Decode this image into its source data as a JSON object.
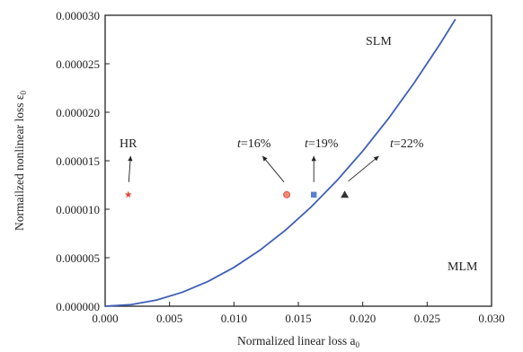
{
  "chart_data": {
    "type": "scatter",
    "title": "",
    "xlabel": "Normalized linear loss a₀",
    "ylabel": "Normailzed nonlinear loss ε₀",
    "xlabel_main": "Normalized linear loss a",
    "xlabel_sub": "0",
    "ylabel_main": "Normailzed nonlinear loss ε",
    "ylabel_sub": "0",
    "xlim": [
      0.0,
      0.03
    ],
    "ylim": [
      0.0,
      3e-05
    ],
    "x_ticks": [
      0.0,
      0.005,
      0.01,
      0.015,
      0.02,
      0.025,
      0.03
    ],
    "x_tick_labels": [
      "0.000",
      "0.005",
      "0.010",
      "0.015",
      "0.020",
      "0.025",
      "0.030"
    ],
    "y_ticks": [
      0.0,
      5e-06,
      1e-05,
      1.5e-05,
      2e-05,
      2.5e-05,
      3e-05
    ],
    "y_tick_labels": [
      "0.000000",
      "0.000005",
      "0.000010",
      "0.000015",
      "0.000020",
      "0.000025",
      "0.000030"
    ],
    "grid": false,
    "boundary_curve": {
      "color": "#3f5fb5",
      "x": [
        0.0,
        0.002,
        0.004,
        0.006,
        0.008,
        0.01,
        0.012,
        0.014,
        0.016,
        0.018,
        0.02,
        0.022,
        0.024,
        0.026,
        0.0272
      ],
      "y": [
        0.0,
        1.6e-07,
        6.4e-07,
        1.44e-06,
        2.56e-06,
        4e-06,
        5.76e-06,
        7.84e-06,
        1.024e-05,
        1.296e-05,
        1.6e-05,
        1.936e-05,
        2.304e-05,
        2.704e-05,
        2.96e-05
      ]
    },
    "region_labels": [
      "SLM",
      "MLM"
    ],
    "points": [
      {
        "label": "HR",
        "x": 0.0018,
        "y": 1.15e-05,
        "marker": "star",
        "color": "#e8473c"
      },
      {
        "label_t": "t",
        "label_rest": "=16%",
        "x": 0.0141,
        "y": 1.15e-05,
        "marker": "circle",
        "color": "#f08a78"
      },
      {
        "label_t": "t",
        "label_rest": "=19%",
        "x": 0.0162,
        "y": 1.15e-05,
        "marker": "square",
        "color": "#5b7fd0"
      },
      {
        "label_t": "t",
        "label_rest": "=22%",
        "x": 0.0186,
        "y": 1.15e-05,
        "marker": "triangle",
        "color": "#333333"
      }
    ]
  }
}
